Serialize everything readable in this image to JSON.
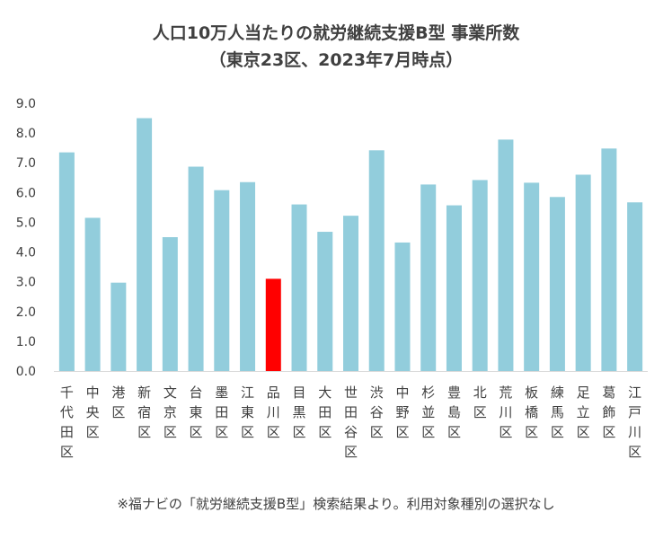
{
  "chart_data": {
    "type": "bar",
    "title": "人口10万人当たりの就労継続支援B型 事業所数",
    "subtitle": "（東京23区、2023年7月時点）",
    "note": "※福ナビの「就労継続支援B型」検索結果より。利用対象種別の選択なし",
    "categories": [
      "千代田区",
      "中央区",
      "港区",
      "新宿区",
      "文京区",
      "台東区",
      "墨田区",
      "江東区",
      "品川区",
      "目黒区",
      "大田区",
      "世田谷区",
      "渋谷区",
      "中野区",
      "杉並区",
      "豊島区",
      "北区",
      "荒川区",
      "板橋区",
      "練馬区",
      "足立区",
      "葛飾区",
      "江戸川区"
    ],
    "values": [
      7.35,
      5.15,
      2.97,
      8.5,
      4.5,
      6.87,
      6.08,
      6.35,
      3.1,
      5.6,
      4.68,
      5.22,
      7.42,
      4.32,
      6.27,
      5.57,
      6.42,
      7.78,
      6.33,
      5.85,
      6.6,
      7.48,
      5.67
    ],
    "highlight_index": 8,
    "ylim": [
      0,
      9
    ],
    "yticks": [
      "0.0",
      "1.0",
      "2.0",
      "3.0",
      "4.0",
      "5.0",
      "6.0",
      "7.0",
      "8.0",
      "9.0"
    ],
    "bar_color": "#92cddc",
    "highlight_color": "#ff0000",
    "grid": false
  }
}
